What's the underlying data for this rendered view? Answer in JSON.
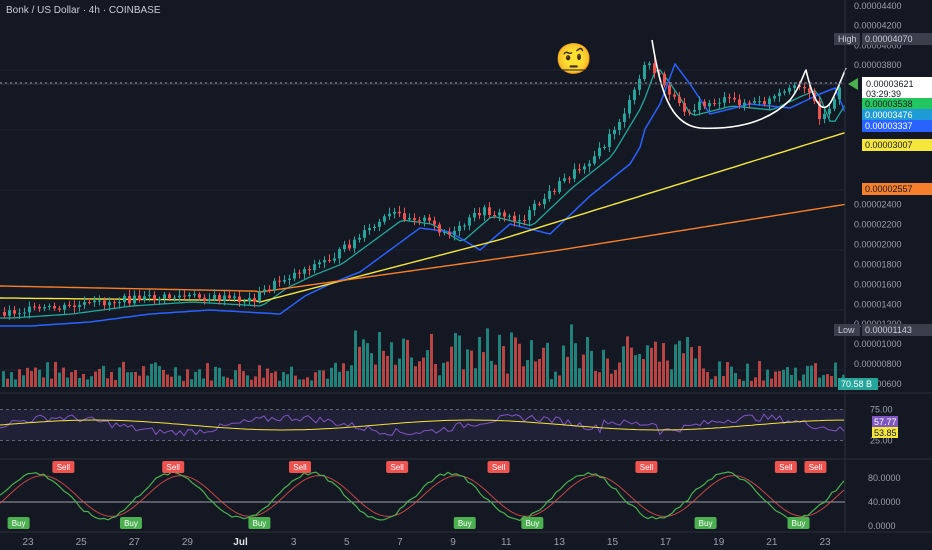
{
  "header": {
    "title": "Bonk / US Dollar · 4h · COINBASE"
  },
  "price_axis": {
    "ticks": [
      "0.00004400",
      "0.00004200",
      "0.00004000",
      "0.00003800",
      "0.00002400",
      "0.00002200",
      "0.00002000",
      "0.00001800",
      "0.00001600",
      "0.00001400",
      "0.00001200",
      "0.00001000",
      "0.00000800",
      "0.00000600"
    ],
    "tick_values": [
      4.4e-05,
      4.2e-05,
      4e-05,
      3.8e-05,
      2.4e-05,
      2.2e-05,
      2e-05,
      1.8e-05,
      1.6e-05,
      1.4e-05,
      1.2e-05,
      1e-05,
      8e-06,
      6e-06
    ]
  },
  "price_labels": {
    "high": {
      "tag": "High",
      "value": "0.00004070"
    },
    "current": {
      "value": "0.00003621",
      "countdown": "03:29:39",
      "color": "#ffffff"
    },
    "ema_fast": {
      "value": "0.00003538",
      "color": "#22c55e"
    },
    "ema_mid": {
      "value": "0.00003476",
      "color": "#1e9bd7"
    },
    "ema_slow": {
      "value": "0.00003337",
      "color": "#2962ff"
    },
    "ma_yellow": {
      "value": "0.00003007",
      "color": "#f5e63c"
    },
    "ma_orange": {
      "value": "0.00002557",
      "color": "#f57f2a"
    },
    "low": {
      "tag": "Low",
      "value": "0.00001143"
    },
    "volume": {
      "value": "70.58 B"
    }
  },
  "rsi_axis": {
    "ticks": [
      "75.00",
      "25.00"
    ],
    "tick_values": [
      75,
      25
    ],
    "value_rsi": "57.77",
    "value_ma": "53.85"
  },
  "osc_axis": {
    "ticks": [
      "80.0000",
      "40.0000",
      "0.0000"
    ],
    "tick_values": [
      80,
      40,
      0
    ]
  },
  "time_axis": {
    "labels": [
      "23",
      "25",
      "27",
      "29",
      "Jul",
      "3",
      "5",
      "7",
      "9",
      "11",
      "13",
      "15",
      "17",
      "19",
      "21",
      "23"
    ]
  },
  "signals": {
    "sell_label": "Sell",
    "buy_label": "Buy",
    "sells_fraction": [
      0.075,
      0.205,
      0.355,
      0.47,
      0.59,
      0.765,
      0.93,
      0.965
    ],
    "buys_fraction": [
      0.022,
      0.155,
      0.307,
      0.55,
      0.63,
      0.835,
      0.945
    ]
  },
  "emoji": {
    "glyph": "🤨"
  },
  "colors": {
    "up": "#26a69a",
    "down": "#ef5350",
    "background": "#141823",
    "rsi_line": "#7e57c2",
    "rsi_ma": "#f5e63c",
    "osc_fast": "#4caf50",
    "osc_slow": "#ef5350"
  }
}
